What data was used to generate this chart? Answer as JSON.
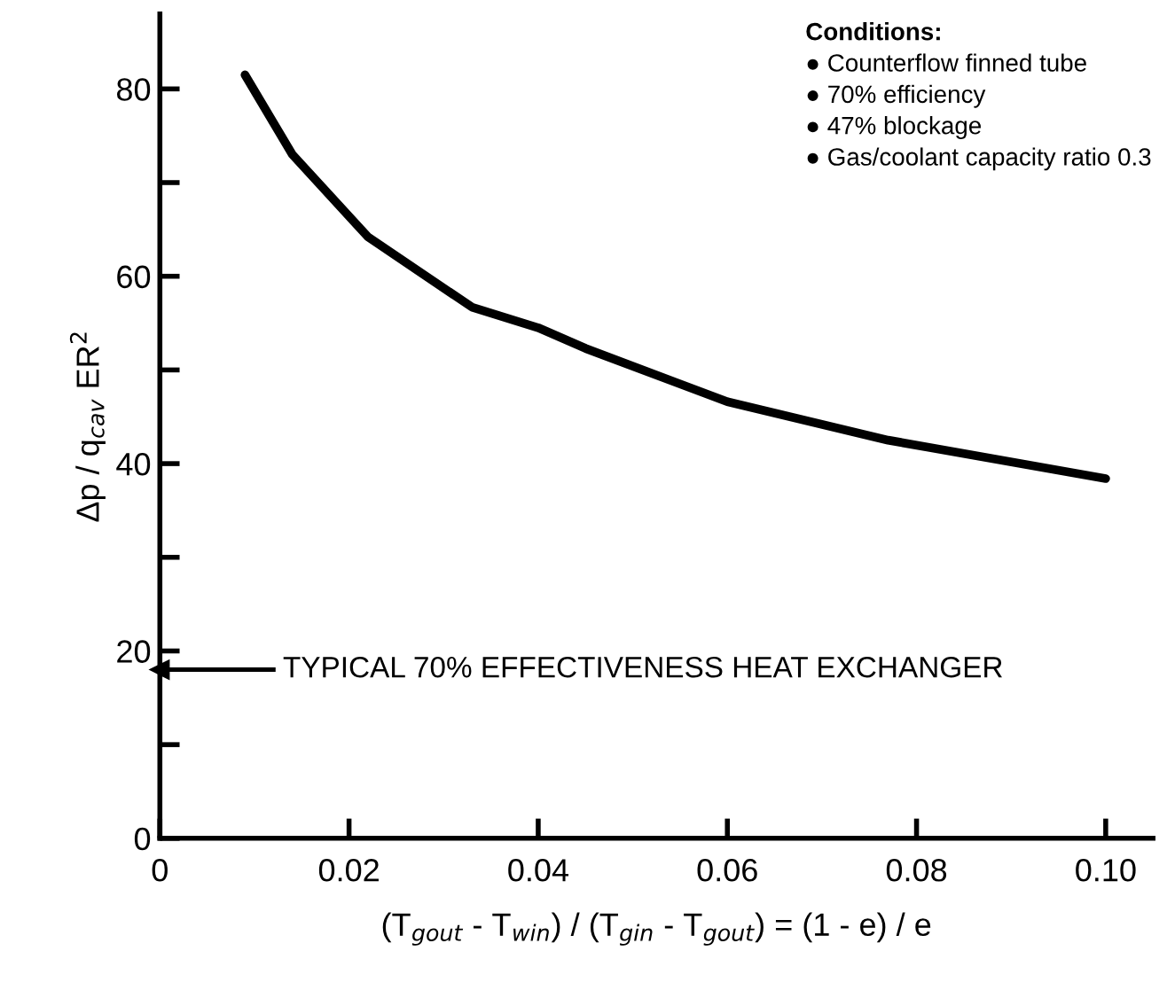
{
  "chart_data": {
    "type": "line",
    "xlabel": "(T$_{gout}$ - T$_{win}$) / (T$_{gin}$ - T$_{gout}$) = (1 - e) / e",
    "ylabel": "Δp / q$_{cav}$ ER$^{2}$",
    "x": [
      0.009,
      0.014,
      0.022,
      0.033,
      0.04,
      0.045,
      0.06,
      0.077,
      0.1
    ],
    "series": [
      {
        "color": "#000000",
        "values": [
          81.5,
          73,
          64.2,
          56.7,
          54.5,
          52.3,
          46.6,
          42.5,
          38.4
        ]
      }
    ],
    "xlim": [
      0,
      0.105
    ],
    "ylim": [
      0,
      88
    ],
    "xticks": [
      {
        "value": 0,
        "label": "0"
      },
      0.02,
      0.04,
      0.06,
      0.08,
      {
        "value": 0.1,
        "label": "0.10"
      }
    ],
    "yticks": [
      0,
      {
        "value": 10,
        "label": null
      },
      20,
      {
        "value": 30,
        "label": null
      },
      40,
      {
        "value": 50,
        "label": null
      },
      60,
      {
        "value": 70,
        "label": null
      },
      80
    ],
    "grid": false,
    "legend": false,
    "marker": "none",
    "line_style": "solid",
    "ref_lines": [
      {
        "axis": "y",
        "value": 18,
        "label": "TYPICAL 70% EFFECTIVENESS HEAT EXCHANGER",
        "color": "#000000"
      }
    ],
    "annotations": [
      "Conditions:",
      "● Counterflow finned tube",
      "● 70% efficiency",
      "● 47% blockage",
      "● Gas/coolant capacity ratio 0.3"
    ]
  }
}
